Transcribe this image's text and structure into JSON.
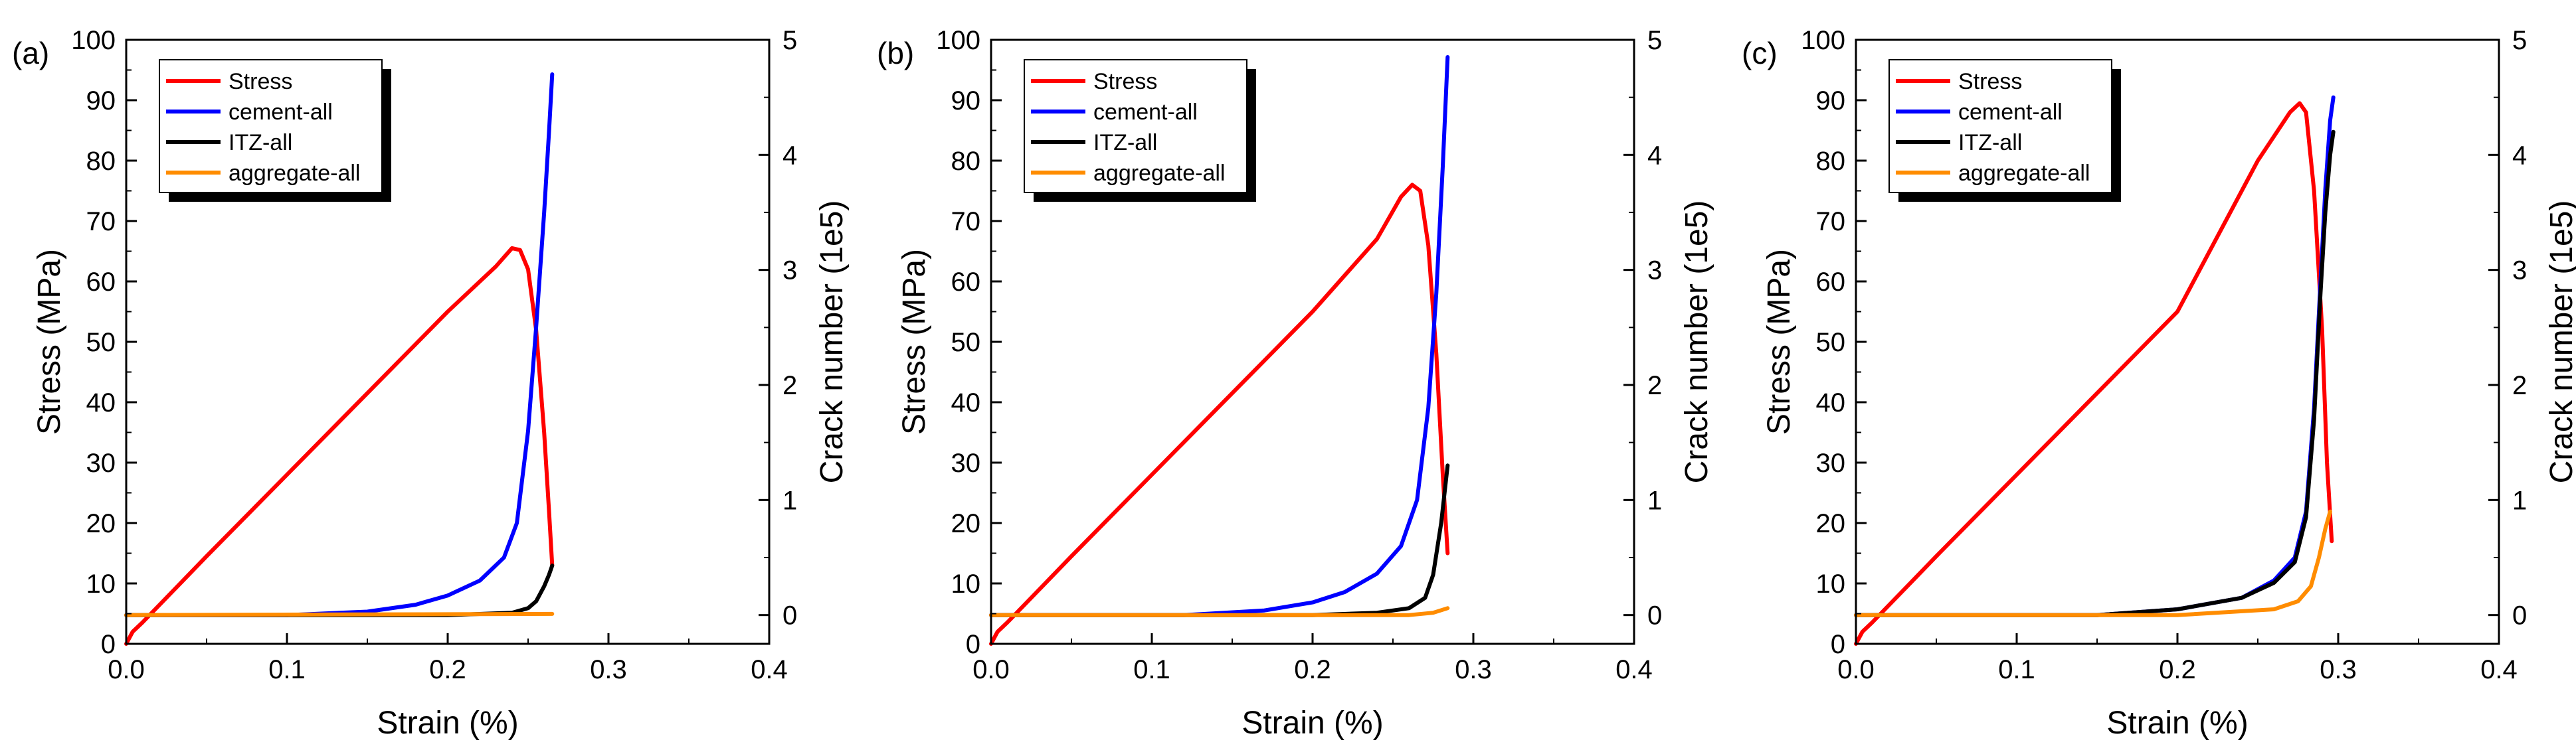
{
  "chart_data": [
    {
      "type": "line",
      "panel_label": "(a)",
      "xlabel": "Strain (%)",
      "ylabel": "Stress (MPa)",
      "y2label": "Crack number (1e5)",
      "xlim": [
        0,
        0.4
      ],
      "ylim": [
        0,
        100
      ],
      "y2lim": [
        -0.25,
        5
      ],
      "xticks": [
        "0.0",
        "0.1",
        "0.2",
        "0.3",
        "0.4"
      ],
      "yticks": [
        "0",
        "10",
        "20",
        "30",
        "40",
        "50",
        "60",
        "70",
        "80",
        "90",
        "100"
      ],
      "y2ticks": [
        "0",
        "1",
        "2",
        "3",
        "4",
        "5"
      ],
      "legend_position": "top-left",
      "series": [
        {
          "name": "Stress",
          "color": "#ff0000",
          "axis": "left",
          "x": [
            0,
            0.004,
            0.01,
            0.03,
            0.05,
            0.1,
            0.15,
            0.2,
            0.23,
            0.24,
            0.245,
            0.25,
            0.255,
            0.26,
            0.263,
            0.265
          ],
          "y": [
            0,
            2,
            3.5,
            9,
            14.5,
            28,
            41.5,
            55,
            62.5,
            65.5,
            65.2,
            62,
            52,
            35,
            22,
            13
          ]
        },
        {
          "name": "cement-all",
          "color": "#0000ff",
          "axis": "right",
          "x": [
            0,
            0.1,
            0.15,
            0.18,
            0.2,
            0.22,
            0.235,
            0.243,
            0.25,
            0.255,
            0.26,
            0.263,
            0.265
          ],
          "y": [
            0,
            0,
            0.03,
            0.09,
            0.17,
            0.3,
            0.5,
            0.8,
            1.6,
            2.5,
            3.5,
            4.2,
            4.7
          ]
        },
        {
          "name": "ITZ-all",
          "color": "#000000",
          "axis": "right",
          "x": [
            0,
            0.2,
            0.24,
            0.25,
            0.255,
            0.26,
            0.263,
            0.265
          ],
          "y": [
            0,
            0,
            0.02,
            0.06,
            0.12,
            0.25,
            0.35,
            0.43
          ]
        },
        {
          "name": "aggregate-all",
          "color": "#ff8c00",
          "axis": "right",
          "x": [
            0,
            0.265
          ],
          "y": [
            0,
            0.01
          ]
        }
      ]
    },
    {
      "type": "line",
      "panel_label": "(b)",
      "xlabel": "Strain (%)",
      "ylabel": "Stress (MPa)",
      "y2label": "Crack number (1e5)",
      "xlim": [
        0,
        0.4
      ],
      "ylim": [
        0,
        100
      ],
      "y2lim": [
        -0.25,
        5
      ],
      "xticks": [
        "0.0",
        "0.1",
        "0.2",
        "0.3",
        "0.4"
      ],
      "yticks": [
        "0",
        "10",
        "20",
        "30",
        "40",
        "50",
        "60",
        "70",
        "80",
        "90",
        "100"
      ],
      "y2ticks": [
        "0",
        "1",
        "2",
        "3",
        "4",
        "5"
      ],
      "legend_position": "top-left",
      "series": [
        {
          "name": "Stress",
          "color": "#ff0000",
          "axis": "left",
          "x": [
            0,
            0.004,
            0.01,
            0.03,
            0.05,
            0.1,
            0.15,
            0.2,
            0.24,
            0.255,
            0.262,
            0.267,
            0.272,
            0.277,
            0.281,
            0.284
          ],
          "y": [
            0,
            2,
            3.5,
            9,
            14.5,
            28,
            41.5,
            55,
            67,
            74,
            76,
            75,
            66,
            48,
            28,
            15
          ]
        },
        {
          "name": "cement-all",
          "color": "#0000ff",
          "axis": "right",
          "x": [
            0,
            0.12,
            0.17,
            0.2,
            0.22,
            0.24,
            0.255,
            0.265,
            0.272,
            0.277,
            0.281,
            0.284
          ],
          "y": [
            0,
            0,
            0.04,
            0.11,
            0.2,
            0.36,
            0.6,
            1.0,
            1.8,
            2.8,
            3.9,
            4.85
          ]
        },
        {
          "name": "ITZ-all",
          "color": "#000000",
          "axis": "right",
          "x": [
            0,
            0.2,
            0.24,
            0.26,
            0.27,
            0.275,
            0.28,
            0.284
          ],
          "y": [
            0,
            0,
            0.02,
            0.06,
            0.15,
            0.35,
            0.8,
            1.3
          ]
        },
        {
          "name": "aggregate-all",
          "color": "#ff8c00",
          "axis": "right",
          "x": [
            0,
            0.26,
            0.275,
            0.284
          ],
          "y": [
            0,
            0,
            0.02,
            0.06
          ]
        }
      ]
    },
    {
      "type": "line",
      "panel_label": "(c)",
      "xlabel": "Strain (%)",
      "ylabel": "Stress (MPa)",
      "y2label": "Crack number (1e5)",
      "xlim": [
        0,
        0.4
      ],
      "ylim": [
        0,
        100
      ],
      "y2lim": [
        -0.25,
        5
      ],
      "xticks": [
        "0.0",
        "0.1",
        "0.2",
        "0.3",
        "0.4"
      ],
      "yticks": [
        "0",
        "10",
        "20",
        "30",
        "40",
        "50",
        "60",
        "70",
        "80",
        "90",
        "100"
      ],
      "y2ticks": [
        "0",
        "1",
        "2",
        "3",
        "4",
        "5"
      ],
      "legend_position": "top-left",
      "series": [
        {
          "name": "Stress",
          "color": "#ff0000",
          "axis": "left",
          "x": [
            0,
            0.004,
            0.01,
            0.03,
            0.05,
            0.1,
            0.15,
            0.2,
            0.25,
            0.27,
            0.276,
            0.28,
            0.285,
            0.29,
            0.293,
            0.296
          ],
          "y": [
            0,
            2,
            3.5,
            9,
            14.5,
            28,
            41.5,
            55,
            80,
            88,
            89.5,
            88,
            75,
            52,
            30,
            17
          ]
        },
        {
          "name": "cement-all",
          "color": "#0000ff",
          "axis": "right",
          "x": [
            0,
            0.15,
            0.2,
            0.24,
            0.26,
            0.273,
            0.28,
            0.285,
            0.289,
            0.292,
            0.295,
            0.297
          ],
          "y": [
            0,
            0,
            0.05,
            0.15,
            0.3,
            0.5,
            0.9,
            1.8,
            2.9,
            3.7,
            4.3,
            4.5
          ]
        },
        {
          "name": "ITZ-all",
          "color": "#000000",
          "axis": "right",
          "x": [
            0,
            0.15,
            0.2,
            0.24,
            0.26,
            0.273,
            0.28,
            0.285,
            0.289,
            0.292,
            0.295,
            0.297
          ],
          "y": [
            0,
            0,
            0.05,
            0.15,
            0.28,
            0.46,
            0.85,
            1.7,
            2.8,
            3.5,
            4.0,
            4.2
          ]
        },
        {
          "name": "aggregate-all",
          "color": "#ff8c00",
          "axis": "right",
          "x": [
            0,
            0.2,
            0.26,
            0.275,
            0.283,
            0.288,
            0.292,
            0.295
          ],
          "y": [
            0,
            0,
            0.05,
            0.12,
            0.25,
            0.5,
            0.75,
            0.9
          ]
        }
      ]
    }
  ]
}
